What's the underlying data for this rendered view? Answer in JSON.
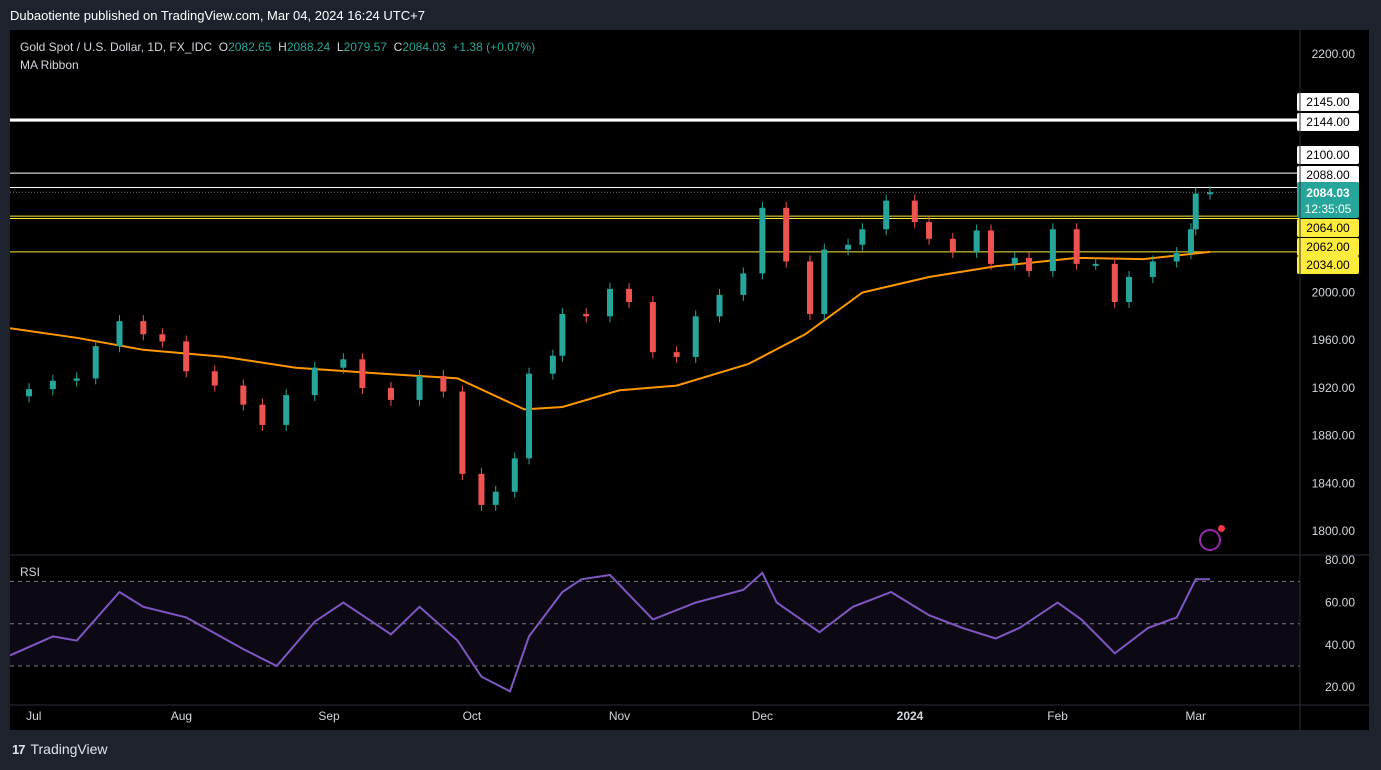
{
  "header": {
    "publisher_line": "Dubaotiente published on TradingView.com, Mar 04, 2024 16:24 UTC+7"
  },
  "legend": {
    "symbol": "Gold Spot / U.S. Dollar, 1D, FX_IDC",
    "open_label": "O",
    "open": "2082.65",
    "high_label": "H",
    "high": "2088.24",
    "low_label": "L",
    "low": "2079.57",
    "close_label": "C",
    "close": "2084.03",
    "change": "+1.38 (+0.07%)",
    "indicator": "MA Ribbon"
  },
  "rsi_label": "RSI",
  "footer": {
    "brand": "TradingView",
    "logo": "17"
  },
  "colors": {
    "up": "#26a69a",
    "down": "#ef5350",
    "ma": "#ff9800",
    "rsi": "#7e57c2",
    "support": "#ffeb3b",
    "resistance": "#ffffff",
    "background": "#000000"
  },
  "icons": [
    "flash-icon",
    "tradingview-logo"
  ],
  "chart_data": [
    {
      "type": "candlestick",
      "title": "Gold Spot / U.S. Dollar, 1D, FX_IDC",
      "ylim": [
        1780,
        2220
      ],
      "y_ticks": [
        "2200.00",
        "2000.00",
        "1960.00",
        "1920.00",
        "1880.00",
        "1840.00",
        "1800.00"
      ],
      "x_ticks": [
        "Jul",
        "Aug",
        "Sep",
        "Oct",
        "Nov",
        "Dec",
        "2024",
        "Feb",
        "Mar"
      ],
      "x_tick_dates": [
        "2023-07-01",
        "2023-08-01",
        "2023-09-01",
        "2023-10-01",
        "2023-11-01",
        "2023-12-01",
        "2024-01-01",
        "2024-02-01",
        "2024-03-01"
      ],
      "closes": [
        {
          "date": "2023-06-26",
          "close": 1913
        },
        {
          "date": "2023-06-30",
          "close": 1919
        },
        {
          "date": "2023-07-05",
          "close": 1926
        },
        {
          "date": "2023-07-10",
          "close": 1928
        },
        {
          "date": "2023-07-14",
          "close": 1955
        },
        {
          "date": "2023-07-19",
          "close": 1976
        },
        {
          "date": "2023-07-24",
          "close": 1965
        },
        {
          "date": "2023-07-28",
          "close": 1959
        },
        {
          "date": "2023-08-02",
          "close": 1934
        },
        {
          "date": "2023-08-08",
          "close": 1922
        },
        {
          "date": "2023-08-14",
          "close": 1906
        },
        {
          "date": "2023-08-18",
          "close": 1889
        },
        {
          "date": "2023-08-23",
          "close": 1914
        },
        {
          "date": "2023-08-29",
          "close": 1937
        },
        {
          "date": "2023-09-04",
          "close": 1944
        },
        {
          "date": "2023-09-08",
          "close": 1920
        },
        {
          "date": "2023-09-14",
          "close": 1910
        },
        {
          "date": "2023-09-20",
          "close": 1930
        },
        {
          "date": "2023-09-25",
          "close": 1917
        },
        {
          "date": "2023-09-29",
          "close": 1848
        },
        {
          "date": "2023-10-03",
          "close": 1822
        },
        {
          "date": "2023-10-06",
          "close": 1833
        },
        {
          "date": "2023-10-10",
          "close": 1861
        },
        {
          "date": "2023-10-13",
          "close": 1932
        },
        {
          "date": "2023-10-18",
          "close": 1947
        },
        {
          "date": "2023-10-20",
          "close": 1982
        },
        {
          "date": "2023-10-25",
          "close": 1980
        },
        {
          "date": "2023-10-30",
          "close": 2003
        },
        {
          "date": "2023-11-03",
          "close": 1992
        },
        {
          "date": "2023-11-08",
          "close": 1950
        },
        {
          "date": "2023-11-13",
          "close": 1946
        },
        {
          "date": "2023-11-17",
          "close": 1980
        },
        {
          "date": "2023-11-22",
          "close": 1998
        },
        {
          "date": "2023-11-27",
          "close": 2016
        },
        {
          "date": "2023-12-01",
          "close": 2071
        },
        {
          "date": "2023-12-06",
          "close": 2026
        },
        {
          "date": "2023-12-11",
          "close": 1982
        },
        {
          "date": "2023-12-14",
          "close": 2036
        },
        {
          "date": "2023-12-19",
          "close": 2040
        },
        {
          "date": "2023-12-22",
          "close": 2053
        },
        {
          "date": "2023-12-27",
          "close": 2077
        },
        {
          "date": "2024-01-02",
          "close": 2059
        },
        {
          "date": "2024-01-05",
          "close": 2045
        },
        {
          "date": "2024-01-10",
          "close": 2034
        },
        {
          "date": "2024-01-15",
          "close": 2052
        },
        {
          "date": "2024-01-18",
          "close": 2024
        },
        {
          "date": "2024-01-23",
          "close": 2029
        },
        {
          "date": "2024-01-26",
          "close": 2018
        },
        {
          "date": "2024-01-31",
          "close": 2053
        },
        {
          "date": "2024-02-05",
          "close": 2024
        },
        {
          "date": "2024-02-09",
          "close": 2024
        },
        {
          "date": "2024-02-13",
          "close": 1992
        },
        {
          "date": "2024-02-16",
          "close": 2013
        },
        {
          "date": "2024-02-21",
          "close": 2026
        },
        {
          "date": "2024-02-26",
          "close": 2033
        },
        {
          "date": "2024-02-29",
          "close": 2053
        },
        {
          "date": "2024-03-01",
          "close": 2083
        },
        {
          "date": "2024-03-04",
          "close": 2084
        }
      ],
      "ma_ribbon": [
        {
          "date": "2023-06-26",
          "value": 1970
        },
        {
          "date": "2023-07-10",
          "value": 1962
        },
        {
          "date": "2023-07-24",
          "value": 1952
        },
        {
          "date": "2023-08-10",
          "value": 1946
        },
        {
          "date": "2023-08-25",
          "value": 1937
        },
        {
          "date": "2023-09-12",
          "value": 1932
        },
        {
          "date": "2023-09-28",
          "value": 1928
        },
        {
          "date": "2023-10-12",
          "value": 1902
        },
        {
          "date": "2023-10-20",
          "value": 1904
        },
        {
          "date": "2023-11-01",
          "value": 1918
        },
        {
          "date": "2023-11-13",
          "value": 1922
        },
        {
          "date": "2023-11-28",
          "value": 1940
        },
        {
          "date": "2023-12-10",
          "value": 1965
        },
        {
          "date": "2023-12-22",
          "value": 2000
        },
        {
          "date": "2024-01-05",
          "value": 2013
        },
        {
          "date": "2024-01-19",
          "value": 2022
        },
        {
          "date": "2024-02-05",
          "value": 2029
        },
        {
          "date": "2024-02-19",
          "value": 2028
        },
        {
          "date": "2024-03-04",
          "value": 2034
        }
      ],
      "horizontal_levels": [
        {
          "label": "2145.00",
          "value": 2145,
          "color": "white"
        },
        {
          "label": "2144.00",
          "value": 2144,
          "color": "white"
        },
        {
          "label": "2100.00",
          "value": 2100,
          "color": "white"
        },
        {
          "label": "2088.00",
          "value": 2088,
          "color": "white"
        },
        {
          "label": "2064.00",
          "value": 2064,
          "color": "yellow"
        },
        {
          "label": "2062.00",
          "value": 2062,
          "color": "yellow"
        },
        {
          "label": "2034.00",
          "value": 2034,
          "color": "yellow"
        }
      ],
      "last_price": {
        "label": "2084.03",
        "countdown": "12:35:05"
      }
    },
    {
      "type": "line",
      "title": "RSI",
      "ylim": [
        13,
        82
      ],
      "y_ticks": [
        "80.00",
        "60.00",
        "40.00",
        "20.00"
      ],
      "bands": [
        70,
        50,
        30
      ],
      "series": [
        {
          "date": "2023-06-26",
          "value": 35
        },
        {
          "date": "2023-07-05",
          "value": 44
        },
        {
          "date": "2023-07-10",
          "value": 42
        },
        {
          "date": "2023-07-19",
          "value": 65
        },
        {
          "date": "2023-07-24",
          "value": 58
        },
        {
          "date": "2023-08-02",
          "value": 53
        },
        {
          "date": "2023-08-14",
          "value": 38
        },
        {
          "date": "2023-08-21",
          "value": 30
        },
        {
          "date": "2023-08-29",
          "value": 51
        },
        {
          "date": "2023-09-04",
          "value": 60
        },
        {
          "date": "2023-09-14",
          "value": 45
        },
        {
          "date": "2023-09-20",
          "value": 58
        },
        {
          "date": "2023-09-28",
          "value": 42
        },
        {
          "date": "2023-10-03",
          "value": 25
        },
        {
          "date": "2023-10-09",
          "value": 18
        },
        {
          "date": "2023-10-13",
          "value": 44
        },
        {
          "date": "2023-10-20",
          "value": 65
        },
        {
          "date": "2023-10-24",
          "value": 71
        },
        {
          "date": "2023-10-30",
          "value": 73
        },
        {
          "date": "2023-11-08",
          "value": 52
        },
        {
          "date": "2023-11-17",
          "value": 60
        },
        {
          "date": "2023-11-27",
          "value": 66
        },
        {
          "date": "2023-12-01",
          "value": 74
        },
        {
          "date": "2023-12-04",
          "value": 60
        },
        {
          "date": "2023-12-13",
          "value": 46
        },
        {
          "date": "2023-12-20",
          "value": 58
        },
        {
          "date": "2023-12-28",
          "value": 65
        },
        {
          "date": "2024-01-05",
          "value": 54
        },
        {
          "date": "2024-01-12",
          "value": 48
        },
        {
          "date": "2024-01-19",
          "value": 43
        },
        {
          "date": "2024-01-24",
          "value": 48
        },
        {
          "date": "2024-02-01",
          "value": 60
        },
        {
          "date": "2024-02-06",
          "value": 52
        },
        {
          "date": "2024-02-13",
          "value": 36
        },
        {
          "date": "2024-02-20",
          "value": 48
        },
        {
          "date": "2024-02-26",
          "value": 53
        },
        {
          "date": "2024-03-01",
          "value": 71
        },
        {
          "date": "2024-03-04",
          "value": 71
        }
      ]
    }
  ]
}
